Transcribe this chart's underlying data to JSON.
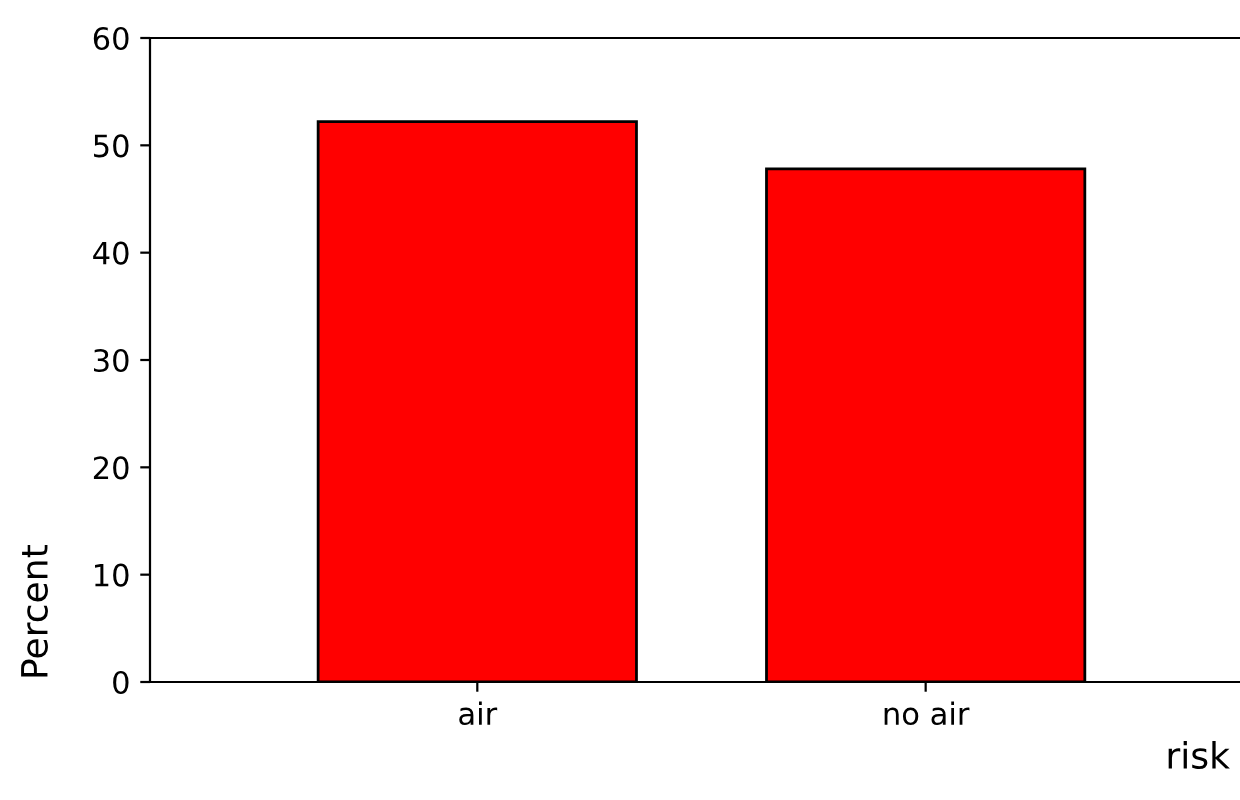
{
  "chart_data": {
    "type": "bar",
    "xlabel": "risk",
    "ylabel": "Percent",
    "categories": [
      "air",
      "no air"
    ],
    "values": [
      52.2,
      47.8
    ],
    "color": "#ff0000",
    "ylim": [
      0,
      60
    ],
    "yticks": [
      0,
      10,
      20,
      30,
      40,
      50,
      60
    ],
    "grid": false
  }
}
